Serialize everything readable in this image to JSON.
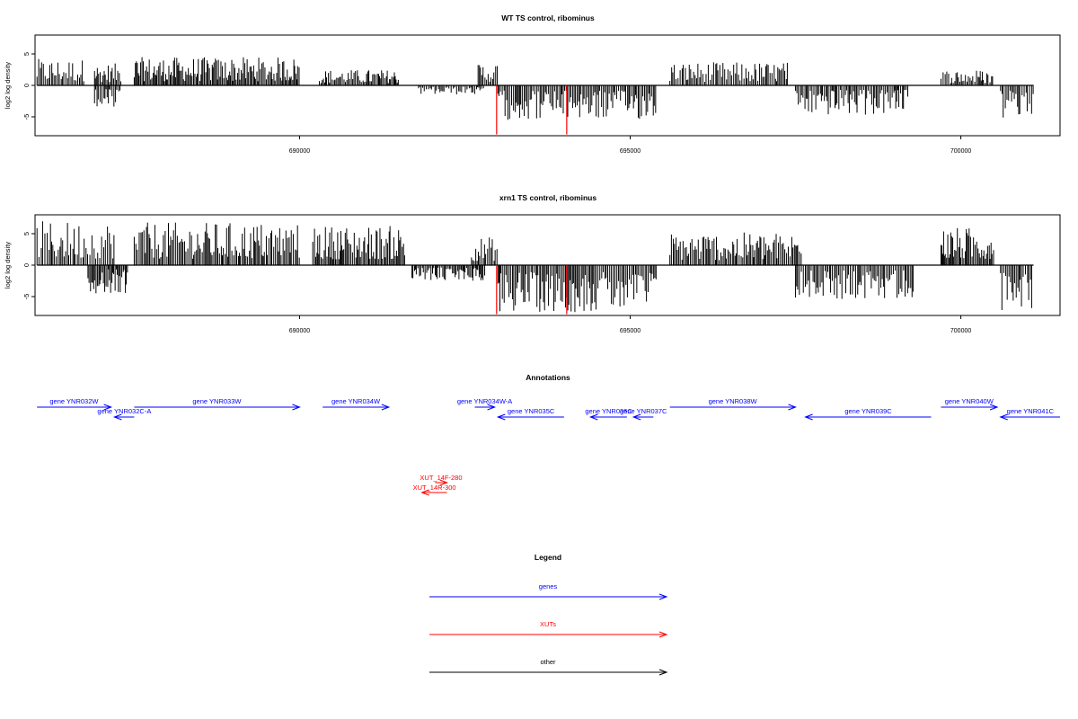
{
  "chart_data": [
    {
      "type": "bar",
      "title": "WT TS control, ribominus",
      "ylabel": "log2 log density",
      "xlim": [
        686000,
        701500
      ],
      "ylim": [
        -8,
        8
      ],
      "yticks": [
        -5,
        0,
        5
      ],
      "xticks": [
        690000,
        695000,
        700000
      ],
      "grid": false,
      "series": [
        {
          "strand": "+",
          "regions": [
            {
              "start": 686030,
              "end": 686750,
              "max": 4.2
            },
            {
              "start": 686900,
              "end": 687300,
              "max": 3.5
            },
            {
              "start": 687500,
              "end": 690000,
              "max": 4.5
            },
            {
              "start": 690300,
              "end": 691500,
              "max": 2.5
            },
            {
              "start": 692700,
              "end": 693000,
              "max": 3.7
            },
            {
              "start": 695600,
              "end": 697400,
              "max": 3.7
            },
            {
              "start": 699700,
              "end": 700500,
              "max": 2.5
            }
          ]
        },
        {
          "strand": "-",
          "regions": [
            {
              "start": 686900,
              "end": 687300,
              "min": -4.0
            },
            {
              "start": 691800,
              "end": 692800,
              "min": -1.5
            },
            {
              "start": 693000,
              "end": 695400,
              "min": -5.5
            },
            {
              "start": 697500,
              "end": 699200,
              "min": -4.8
            },
            {
              "start": 700600,
              "end": 701100,
              "min": -5.5
            }
          ]
        }
      ],
      "highlight_lines": [
        692980,
        694040
      ],
      "highlight_min": -7.8
    },
    {
      "type": "bar",
      "title": "xrn1 TS control, ribominus",
      "ylabel": "log2 log density",
      "xlim": [
        686000,
        701500
      ],
      "ylim": [
        -8,
        8
      ],
      "yticks": [
        -5,
        0,
        5
      ],
      "xticks": [
        690000,
        695000,
        700000
      ],
      "grid": false,
      "series": [
        {
          "strand": "+",
          "regions": [
            {
              "start": 686030,
              "end": 687200,
              "max": 7.0
            },
            {
              "start": 687500,
              "end": 690000,
              "max": 6.8
            },
            {
              "start": 690200,
              "end": 691600,
              "max": 6.3
            },
            {
              "start": 692600,
              "end": 693000,
              "max": 4.5
            },
            {
              "start": 695600,
              "end": 697600,
              "max": 5.2
            },
            {
              "start": 699700,
              "end": 700500,
              "max": 6.0
            }
          ]
        },
        {
          "strand": "-",
          "regions": [
            {
              "start": 686800,
              "end": 687400,
              "min": -4.5
            },
            {
              "start": 691700,
              "end": 692800,
              "min": -2.5
            },
            {
              "start": 693000,
              "end": 695400,
              "min": -7.5
            },
            {
              "start": 697500,
              "end": 699300,
              "min": -5.5
            },
            {
              "start": 700600,
              "end": 701100,
              "min": -7.5
            }
          ]
        }
      ],
      "highlight_lines": [
        692980,
        694040
      ],
      "highlight_min": -7.8
    }
  ],
  "annotations": {
    "title": "Annotations",
    "genes": [
      {
        "label": "gene YNR032W",
        "start": 686030,
        "end": 687150,
        "strand": "+",
        "row": 0
      },
      {
        "label": "gene YNR032C-A",
        "start": 687200,
        "end": 687500,
        "strand": "-",
        "row": 1
      },
      {
        "label": "gene YNR033W",
        "start": 687500,
        "end": 690000,
        "strand": "+",
        "row": 0
      },
      {
        "label": "gene YNR034W",
        "start": 690350,
        "end": 691350,
        "strand": "+",
        "row": 0
      },
      {
        "label": "gene YNR034W-A",
        "start": 692650,
        "end": 692950,
        "strand": "+",
        "row": 0
      },
      {
        "label": "gene YNR035C",
        "start": 693000,
        "end": 694000,
        "strand": "-",
        "row": 1
      },
      {
        "label": "gene YNR036C",
        "start": 694400,
        "end": 694950,
        "strand": "-",
        "row": 1
      },
      {
        "label": "gene YNR037C",
        "start": 695050,
        "end": 695350,
        "strand": "-",
        "row": 1
      },
      {
        "label": "gene YNR038W",
        "start": 695600,
        "end": 697500,
        "strand": "+",
        "row": 0
      },
      {
        "label": "gene YNR039C",
        "start": 697650,
        "end": 699550,
        "strand": "-",
        "row": 1
      },
      {
        "label": "gene YNR040W",
        "start": 699700,
        "end": 700550,
        "strand": "+",
        "row": 0
      },
      {
        "label": "gene YNR041C",
        "start": 700600,
        "end": 701500,
        "strand": "-",
        "row": 1
      }
    ],
    "xuts": [
      {
        "label": "XUT_14F-280",
        "start": 692050,
        "end": 692230,
        "strand": "+",
        "row": 0
      },
      {
        "label": "XUT_14R-300",
        "start": 691850,
        "end": 692230,
        "strand": "-",
        "row": 1
      }
    ]
  },
  "legend": {
    "title": "Legend",
    "items": [
      {
        "label": "genes",
        "color": "#0000ff"
      },
      {
        "label": "XUTs",
        "color": "#ff0000"
      },
      {
        "label": "other",
        "color": "#000000"
      }
    ]
  },
  "colors": {
    "signal": "#000000",
    "highlight": "#ff0000",
    "gene": "#0000ff",
    "xut": "#ff0000",
    "other": "#000000"
  }
}
